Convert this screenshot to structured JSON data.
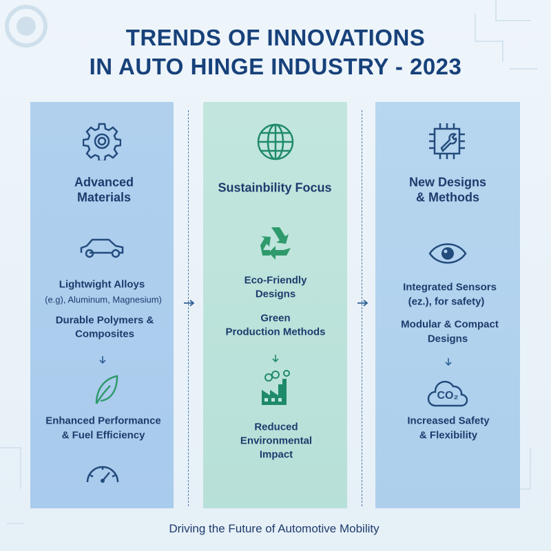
{
  "title_lines": [
    "TRENDS OF INNOVATIONS",
    "IN AUTO HINGE INDUSTRY - 2023"
  ],
  "columns": [
    {
      "heading_lines": [
        "Advanced",
        "Materials"
      ],
      "items": [
        [
          "Lightwight Alloys",
          "(e.g), Aluminum, Magnesium)"
        ],
        [
          "Durable Polymers &",
          "Composites"
        ]
      ],
      "result_lines": [
        "Enhanced Performance",
        "& Fuel Efficiency"
      ]
    },
    {
      "heading_lines": [
        "Sustainbility Focus"
      ],
      "items": [
        [
          "Eco-Friendly",
          "Designs"
        ],
        [
          "Green",
          "Production Methods"
        ]
      ],
      "result_lines": [
        "Reduced",
        "Environmental",
        "Impact"
      ]
    },
    {
      "heading_lines": [
        "New Designs",
        "& Methods"
      ],
      "items": [
        [
          "Integrated Sensors",
          "(ez.), for safety)"
        ],
        [
          "Modular & Compact",
          "Designs"
        ]
      ],
      "result_icon_label": "CO₂",
      "result_lines": [
        "Increased Safety",
        "& Flexibility"
      ]
    }
  ],
  "footer": "Driving the Future of Automotive Mobility"
}
